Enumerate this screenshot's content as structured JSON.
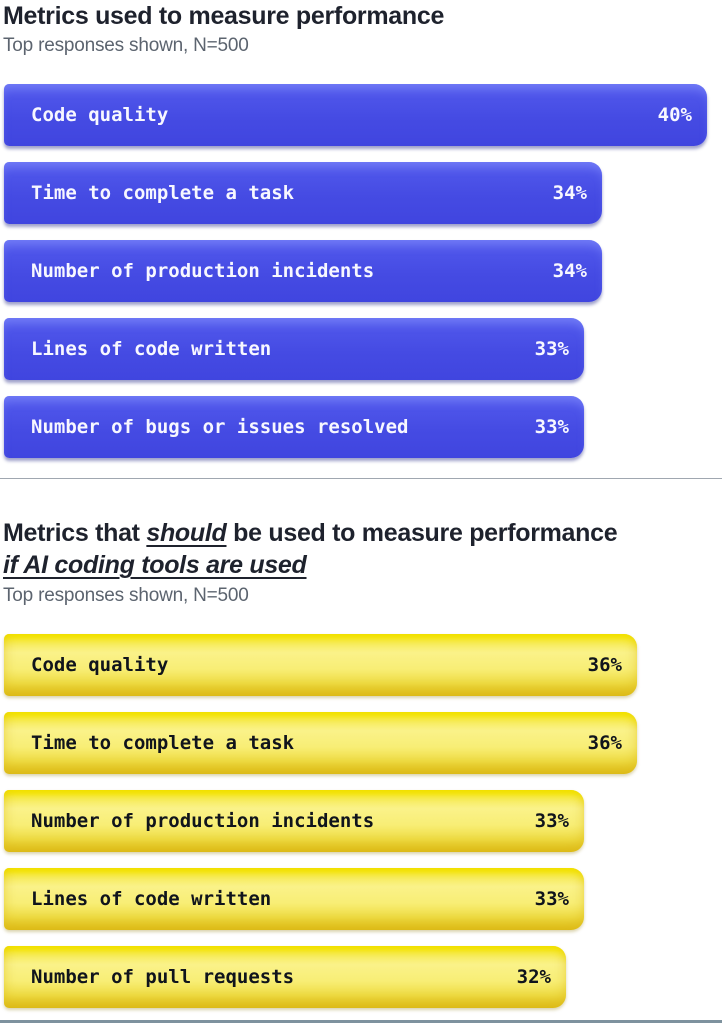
{
  "colors": {
    "blue_bar": "#474ce5",
    "yellow_bar": "#f6e94f",
    "title_text": "#1e222d",
    "subtitle_text": "#5c646f",
    "blue_bar_label": "#ffffff",
    "yellow_bar_label": "#10141c",
    "divider": "#a0a7b0",
    "footer_rule": "#7e929e"
  },
  "chart_data": [
    {
      "type": "bar",
      "orientation": "horizontal",
      "title": "Metrics used to measure performance",
      "title_prefix": "Metrics used to measure performance",
      "title_emphasis": "",
      "title_suffix": "",
      "title_line2": "",
      "subtitle": "Top responses shown, N=500",
      "categories": [
        "Code quality",
        "Time to complete a task",
        "Number of production incidents",
        "Lines of code written",
        "Number of bugs or issues resolved"
      ],
      "values": [
        40,
        34,
        34,
        33,
        33
      ],
      "unit": "%",
      "style": "blue",
      "bar_color": "#474ce5",
      "value_label_color": "#ffffff",
      "xlim": [
        0,
        40
      ],
      "grid": false,
      "legend": false
    },
    {
      "type": "bar",
      "orientation": "horizontal",
      "title": "Metrics that should be used to measure performance if AI coding tools are used",
      "title_prefix": "Metrics that ",
      "title_emphasis": "should",
      "title_suffix": " be used to measure performance",
      "title_line2": "if AI coding tools are used",
      "subtitle": "Top responses shown, N=500",
      "categories": [
        "Code quality",
        "Time to complete a task",
        "Number of production incidents",
        "Lines of code written",
        "Number of pull requests"
      ],
      "values": [
        36,
        36,
        33,
        33,
        32
      ],
      "unit": "%",
      "style": "yellow",
      "bar_color": "#f6e94f",
      "value_label_color": "#10141c",
      "xlim": [
        0,
        40
      ],
      "grid": false,
      "legend": false
    }
  ]
}
